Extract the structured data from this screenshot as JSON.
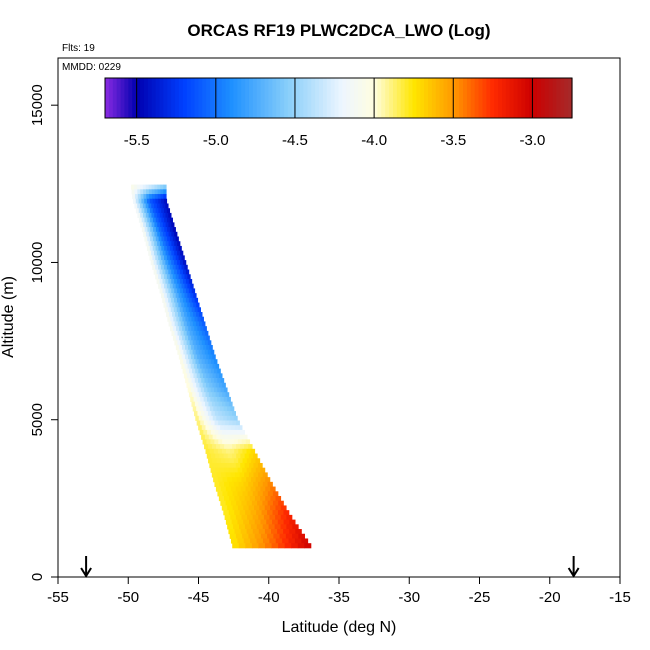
{
  "chart_data": {
    "type": "heatmap",
    "title": "ORCAS RF19 PLWC2DCA_LWO (Log)",
    "xlabel": "Latitude (deg N)",
    "ylabel": "Altitude (m)",
    "xlim": [
      -55,
      -15
    ],
    "ylim": [
      0,
      16500
    ],
    "x_ticks": [
      -55,
      -50,
      -45,
      -40,
      -35,
      -30,
      -25,
      -20,
      -15
    ],
    "y_ticks": [
      0,
      5000,
      10000,
      15000
    ],
    "annotations": {
      "flights": "Flts: 19",
      "date": "MMDD: 0229"
    },
    "markers": [
      {
        "type": "down-arrow",
        "x": -53.0
      },
      {
        "type": "down-arrow",
        "x": -18.3
      }
    ],
    "colorbar": {
      "range": [
        -5.7,
        -2.75
      ],
      "ticks": [
        -5.5,
        -5.0,
        -4.5,
        -4.0,
        -3.5,
        -3.0
      ],
      "tick_labels": [
        "-5.5",
        "-5.0",
        "-4.5",
        "-4.0",
        "-3.5",
        "-3.0"
      ],
      "stops": [
        {
          "value": -5.7,
          "color": "#8a2be2"
        },
        {
          "value": -5.5,
          "color": "#0000b0"
        },
        {
          "value": -5.2,
          "color": "#0040ff"
        },
        {
          "value": -4.9,
          "color": "#1e90ff"
        },
        {
          "value": -4.55,
          "color": "#87cefa"
        },
        {
          "value": -4.2,
          "color": "#eef6ff"
        },
        {
          "value": -4.0,
          "color": "#fffde0"
        },
        {
          "value": -3.75,
          "color": "#ffe600"
        },
        {
          "value": -3.5,
          "color": "#ff9900"
        },
        {
          "value": -3.25,
          "color": "#ff2a00"
        },
        {
          "value": -3.0,
          "color": "#cc0000"
        },
        {
          "value": -2.75,
          "color": "#a52a2a"
        }
      ]
    },
    "profile": [
      {
        "alt": 12400,
        "lat_west": -49.8,
        "lat_east": -47.3,
        "west": -4.05,
        "core": -4.3,
        "east": -4.6
      },
      {
        "alt": 12000,
        "lat_west": -49.7,
        "lat_east": -47.3,
        "west": -4.1,
        "core": -5.1,
        "east": -5.45
      },
      {
        "alt": 11000,
        "lat_west": -49.0,
        "lat_east": -46.6,
        "west": -4.05,
        "core": -5.0,
        "east": -5.5
      },
      {
        "alt": 10000,
        "lat_west": -48.4,
        "lat_east": -45.9,
        "west": -4.05,
        "core": -4.9,
        "east": -5.45
      },
      {
        "alt": 9000,
        "lat_west": -47.7,
        "lat_east": -45.2,
        "west": -4.05,
        "core": -4.8,
        "east": -5.3
      },
      {
        "alt": 8000,
        "lat_west": -47.1,
        "lat_east": -44.5,
        "west": -4.05,
        "core": -4.75,
        "east": -5.1
      },
      {
        "alt": 7000,
        "lat_west": -46.4,
        "lat_east": -43.8,
        "west": -4.0,
        "core": -4.7,
        "east": -4.95
      },
      {
        "alt": 6000,
        "lat_west": -45.8,
        "lat_east": -43.0,
        "west": -3.95,
        "core": -4.55,
        "east": -4.8
      },
      {
        "alt": 5000,
        "lat_west": -45.2,
        "lat_east": -42.2,
        "west": -3.85,
        "core": -4.35,
        "east": -4.5
      },
      {
        "alt": 4000,
        "lat_west": -44.5,
        "lat_east": -41.0,
        "west": -3.8,
        "core": -3.9,
        "east": -3.7
      },
      {
        "alt": 3000,
        "lat_west": -43.9,
        "lat_east": -39.8,
        "west": -3.8,
        "core": -3.7,
        "east": -3.45
      },
      {
        "alt": 2000,
        "lat_west": -43.2,
        "lat_east": -38.5,
        "west": -3.8,
        "core": -3.55,
        "east": -3.2
      },
      {
        "alt": 1000,
        "lat_west": -42.6,
        "lat_east": -37.0,
        "west": -3.75,
        "core": -3.4,
        "east": -3.0
      }
    ]
  }
}
